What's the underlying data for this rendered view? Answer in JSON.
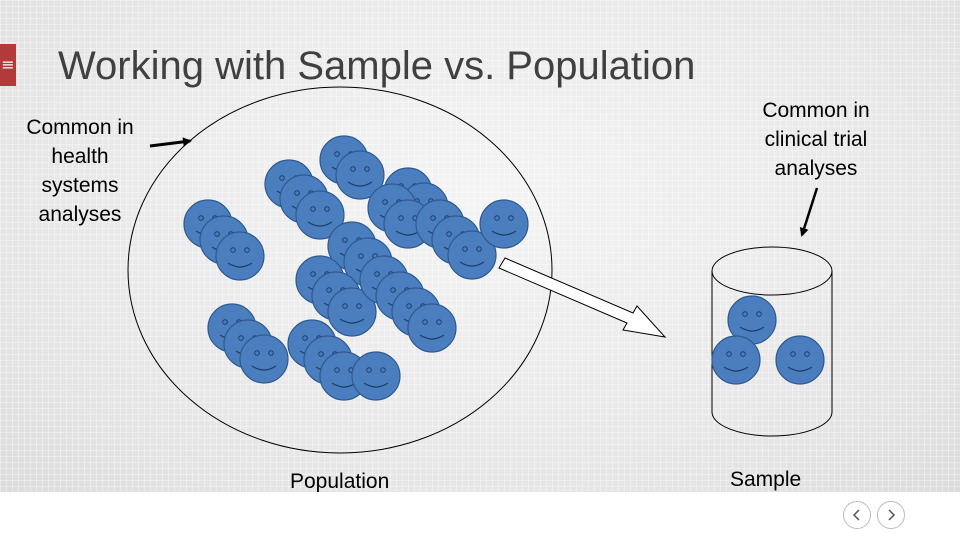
{
  "slide": {
    "title": "Working with Sample vs. Population",
    "callout_left": [
      "Common in",
      "health",
      "systems",
      "analyses"
    ],
    "callout_right": [
      "Common in",
      "clinical trial",
      "analyses"
    ],
    "population_label": "Population",
    "sample_label": "Sample",
    "population_smiley_count": 31,
    "sample_smiley_count": 3
  },
  "menu": {
    "icon": "hamburger-icon",
    "glyph": "≡",
    "color": "#b33a3a"
  },
  "nav": {
    "prev_icon": "chevron-left-icon",
    "next_icon": "chevron-right-icon"
  },
  "colors": {
    "smiley_fill": "#4a7ebf",
    "smiley_stroke": "#2f5a8f",
    "title": "#404040"
  }
}
